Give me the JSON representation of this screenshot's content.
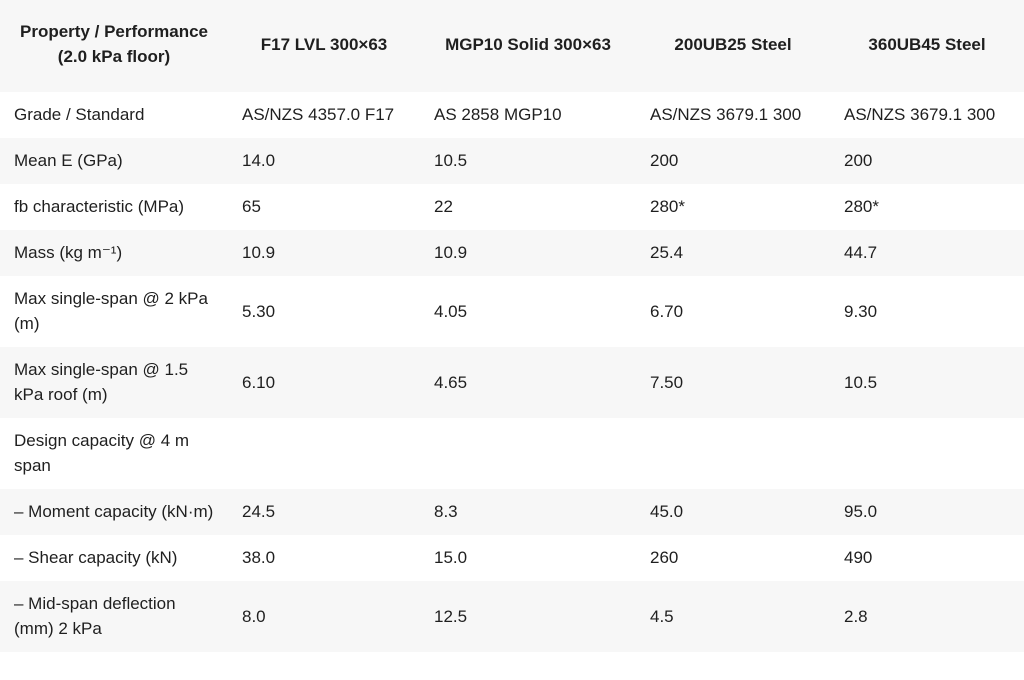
{
  "table": {
    "header": [
      "Property / Performance (2.0 kPa floor)",
      "F17 LVL 300×63",
      "MGP10 Solid 300×63",
      "200UB25 Steel",
      "360UB45 Steel"
    ],
    "rows": [
      [
        "Grade / Standard",
        "AS/NZS 4357.0 F17",
        "AS 2858 MGP10",
        "AS/NZS 3679.1 300",
        "AS/NZS 3679.1 300"
      ],
      [
        "Mean E (GPa)",
        "14.0",
        "10.5",
        "200",
        "200"
      ],
      [
        "fb characteristic (MPa)",
        "65",
        "22",
        "280*",
        "280*"
      ],
      [
        "Mass (kg m⁻¹)",
        "10.9",
        "10.9",
        "25.4",
        "44.7"
      ],
      [
        "Max single-span @ 2 kPa (m)",
        "5.30",
        "4.05",
        "6.70",
        "9.30"
      ],
      [
        "Max single-span @ 1.5 kPa roof (m)",
        "6.10",
        "4.65",
        "7.50",
        "10.5"
      ],
      [
        "Design capacity @ 4 m span"
      ],
      [
        "– Moment capacity (kN·m)",
        "24.5",
        "8.3",
        "45.0",
        "95.0"
      ],
      [
        "– Shear capacity (kN)",
        "38.0",
        "15.0",
        "260",
        "490"
      ],
      [
        "– Mid-span deflection (mm) 2 kPa",
        "8.0",
        "12.5",
        "4.5",
        "2.8"
      ]
    ]
  }
}
